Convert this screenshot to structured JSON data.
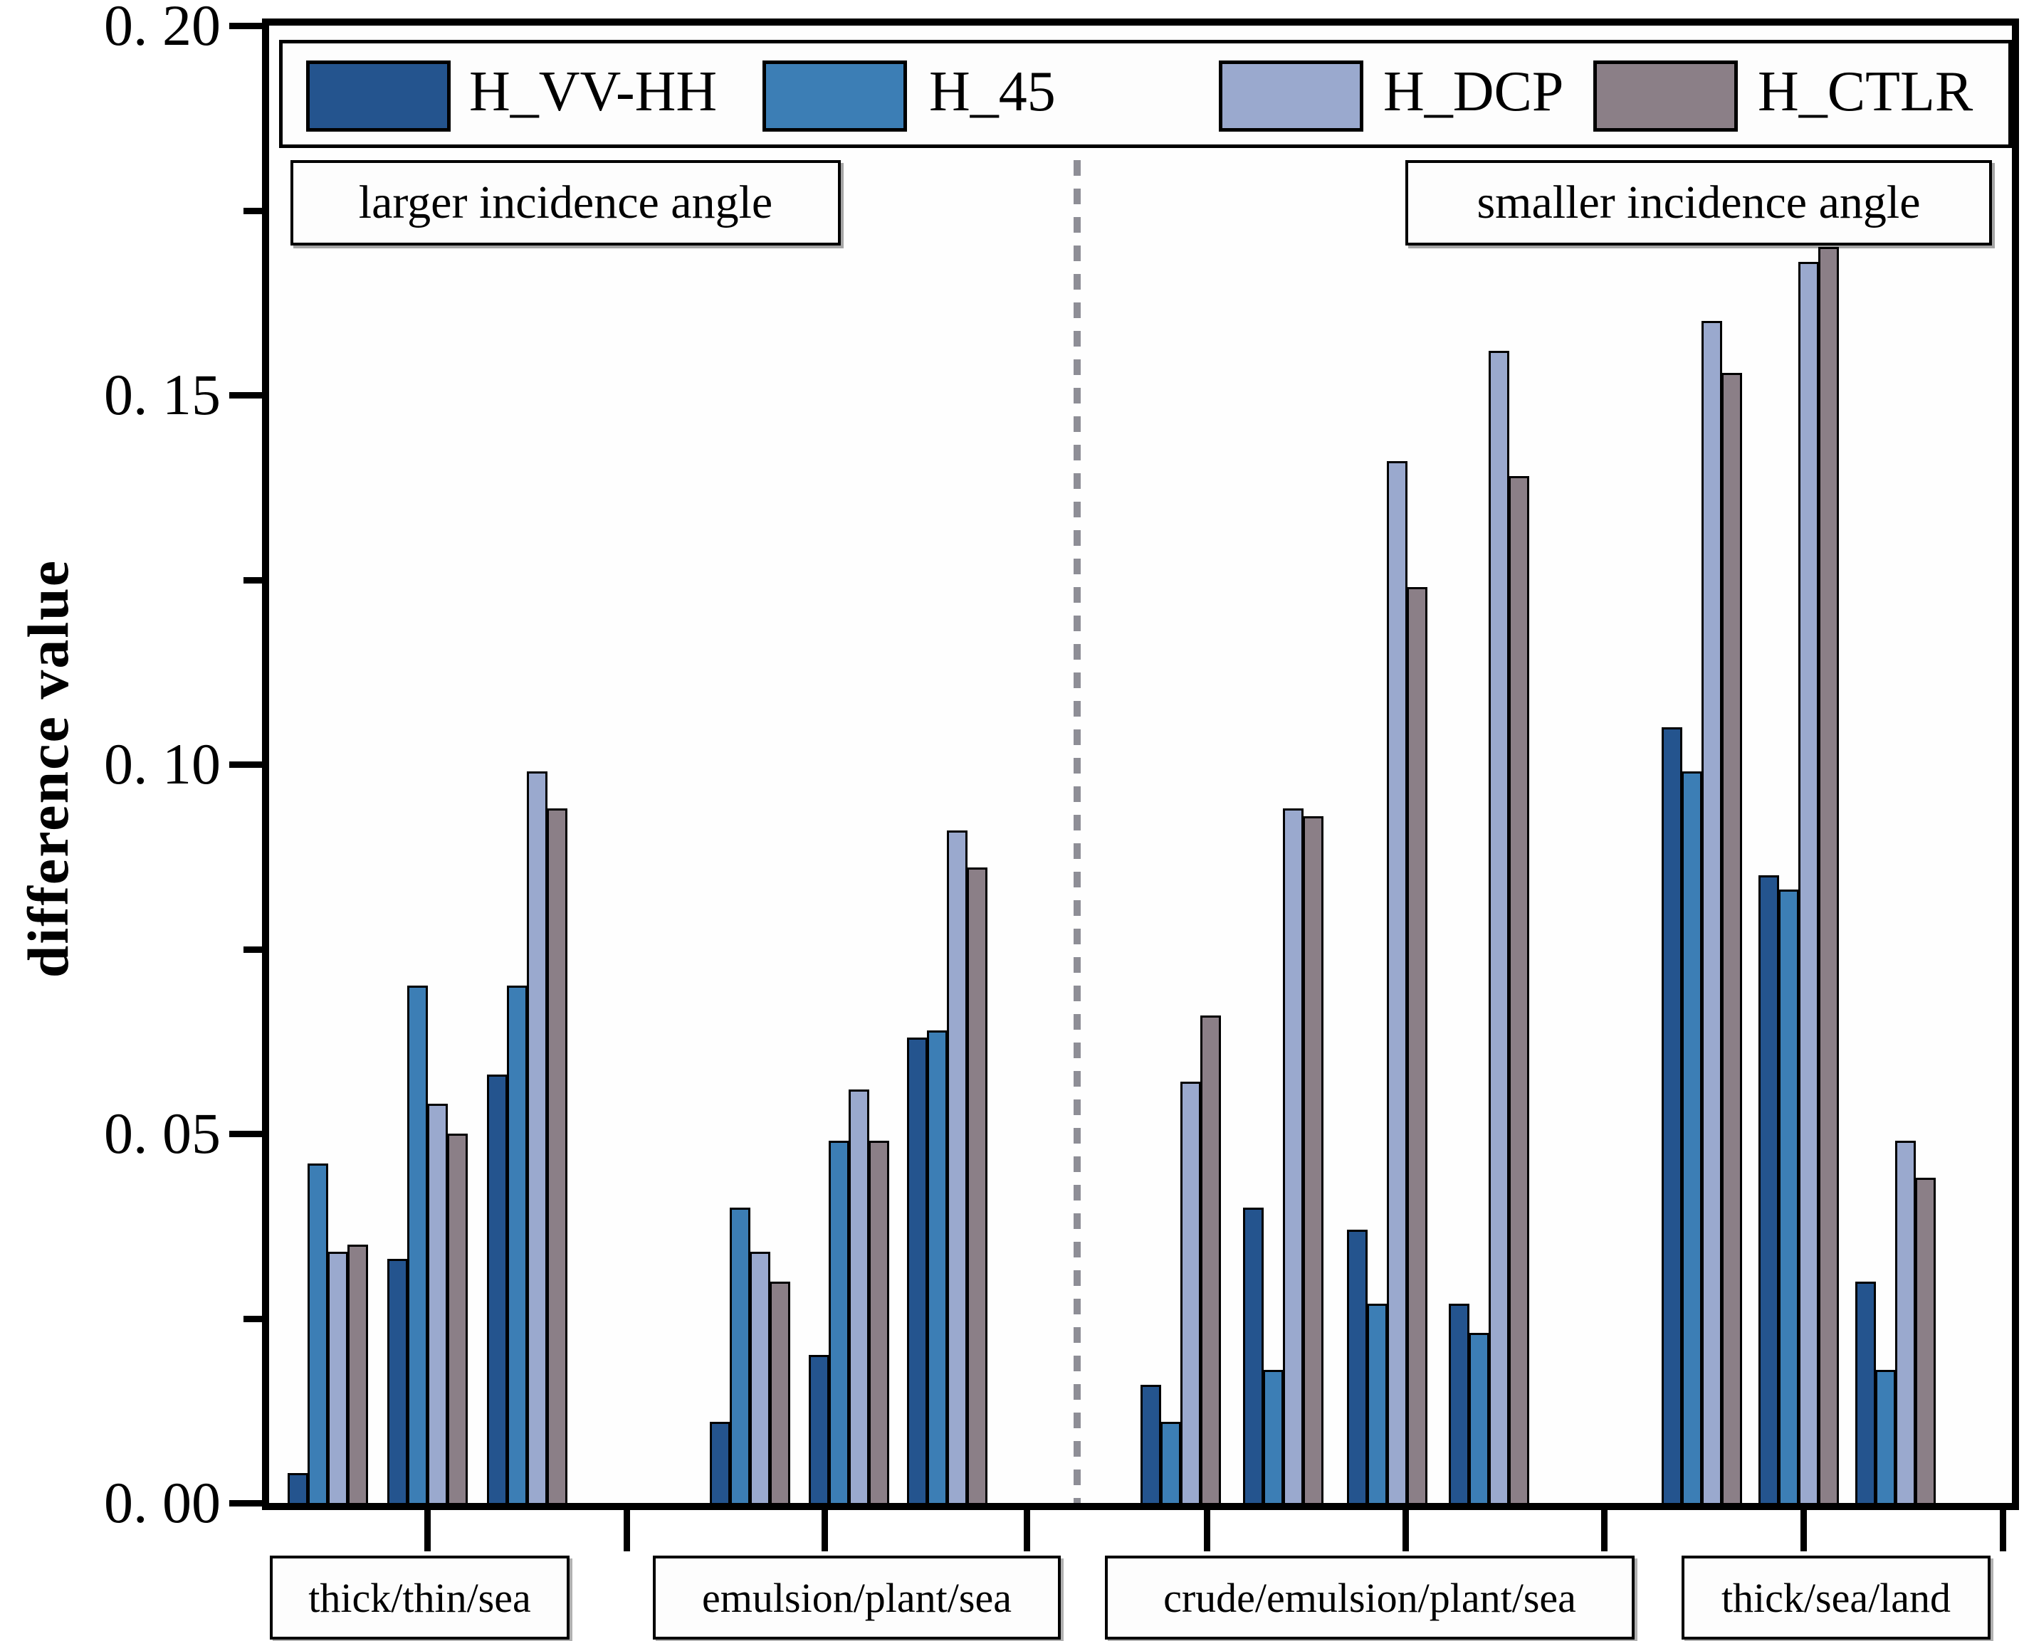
{
  "chart_data": {
    "type": "bar",
    "title": "",
    "xlabel": "",
    "ylabel": "difference value",
    "ylim": [
      0,
      0.2
    ],
    "ytick_labels": [
      "0. 00",
      "0. 05",
      "0. 10",
      "0. 15",
      "0. 20"
    ],
    "ytick_values": [
      0,
      0.05,
      0.1,
      0.15,
      0.2
    ],
    "ytick_minor_values": [
      0.025,
      0.075,
      0.125,
      0.175
    ],
    "grid": "off",
    "legend_position": "top-inside",
    "series": [
      {
        "name": "H_VV-HH",
        "color": "#24548E"
      },
      {
        "name": "H_45",
        "color": "#3C7EB5"
      },
      {
        "name": "H_DCP",
        "color": "#9AA9CE"
      },
      {
        "name": "H_CTLR",
        "color": "#8B7F87"
      }
    ],
    "annotations": {
      "left": "larger incidence angle",
      "right": "smaller incidence angle"
    },
    "divider_color": "#8E8E96",
    "categories": [
      {
        "label": "thick/thin/sea",
        "groups": [
          [
            0.004,
            0.046,
            0.034,
            0.035
          ],
          [
            0.033,
            0.07,
            0.054,
            0.05
          ],
          [
            0.058,
            0.07,
            0.099,
            0.094
          ]
        ]
      },
      {
        "label": "emulsion/plant/sea",
        "groups": [
          [
            0.011,
            0.04,
            0.034,
            0.03
          ],
          [
            0.02,
            0.049,
            0.056,
            0.049
          ],
          [
            0.063,
            0.064,
            0.091,
            0.086
          ]
        ]
      },
      {
        "label": "crude/emulsion/plant/sea",
        "groups": [
          [
            0.016,
            0.011,
            0.057,
            0.066
          ],
          [
            0.04,
            0.018,
            0.094,
            0.093
          ],
          [
            0.037,
            0.027,
            0.141,
            0.124
          ],
          [
            0.027,
            0.023,
            0.156,
            0.139
          ]
        ]
      },
      {
        "label": "thick/sea/land",
        "groups": [
          [
            0.105,
            0.099,
            0.16,
            0.153
          ],
          [
            0.085,
            0.083,
            0.168,
            0.17
          ],
          [
            0.03,
            0.018,
            0.049,
            0.044
          ]
        ]
      }
    ]
  }
}
